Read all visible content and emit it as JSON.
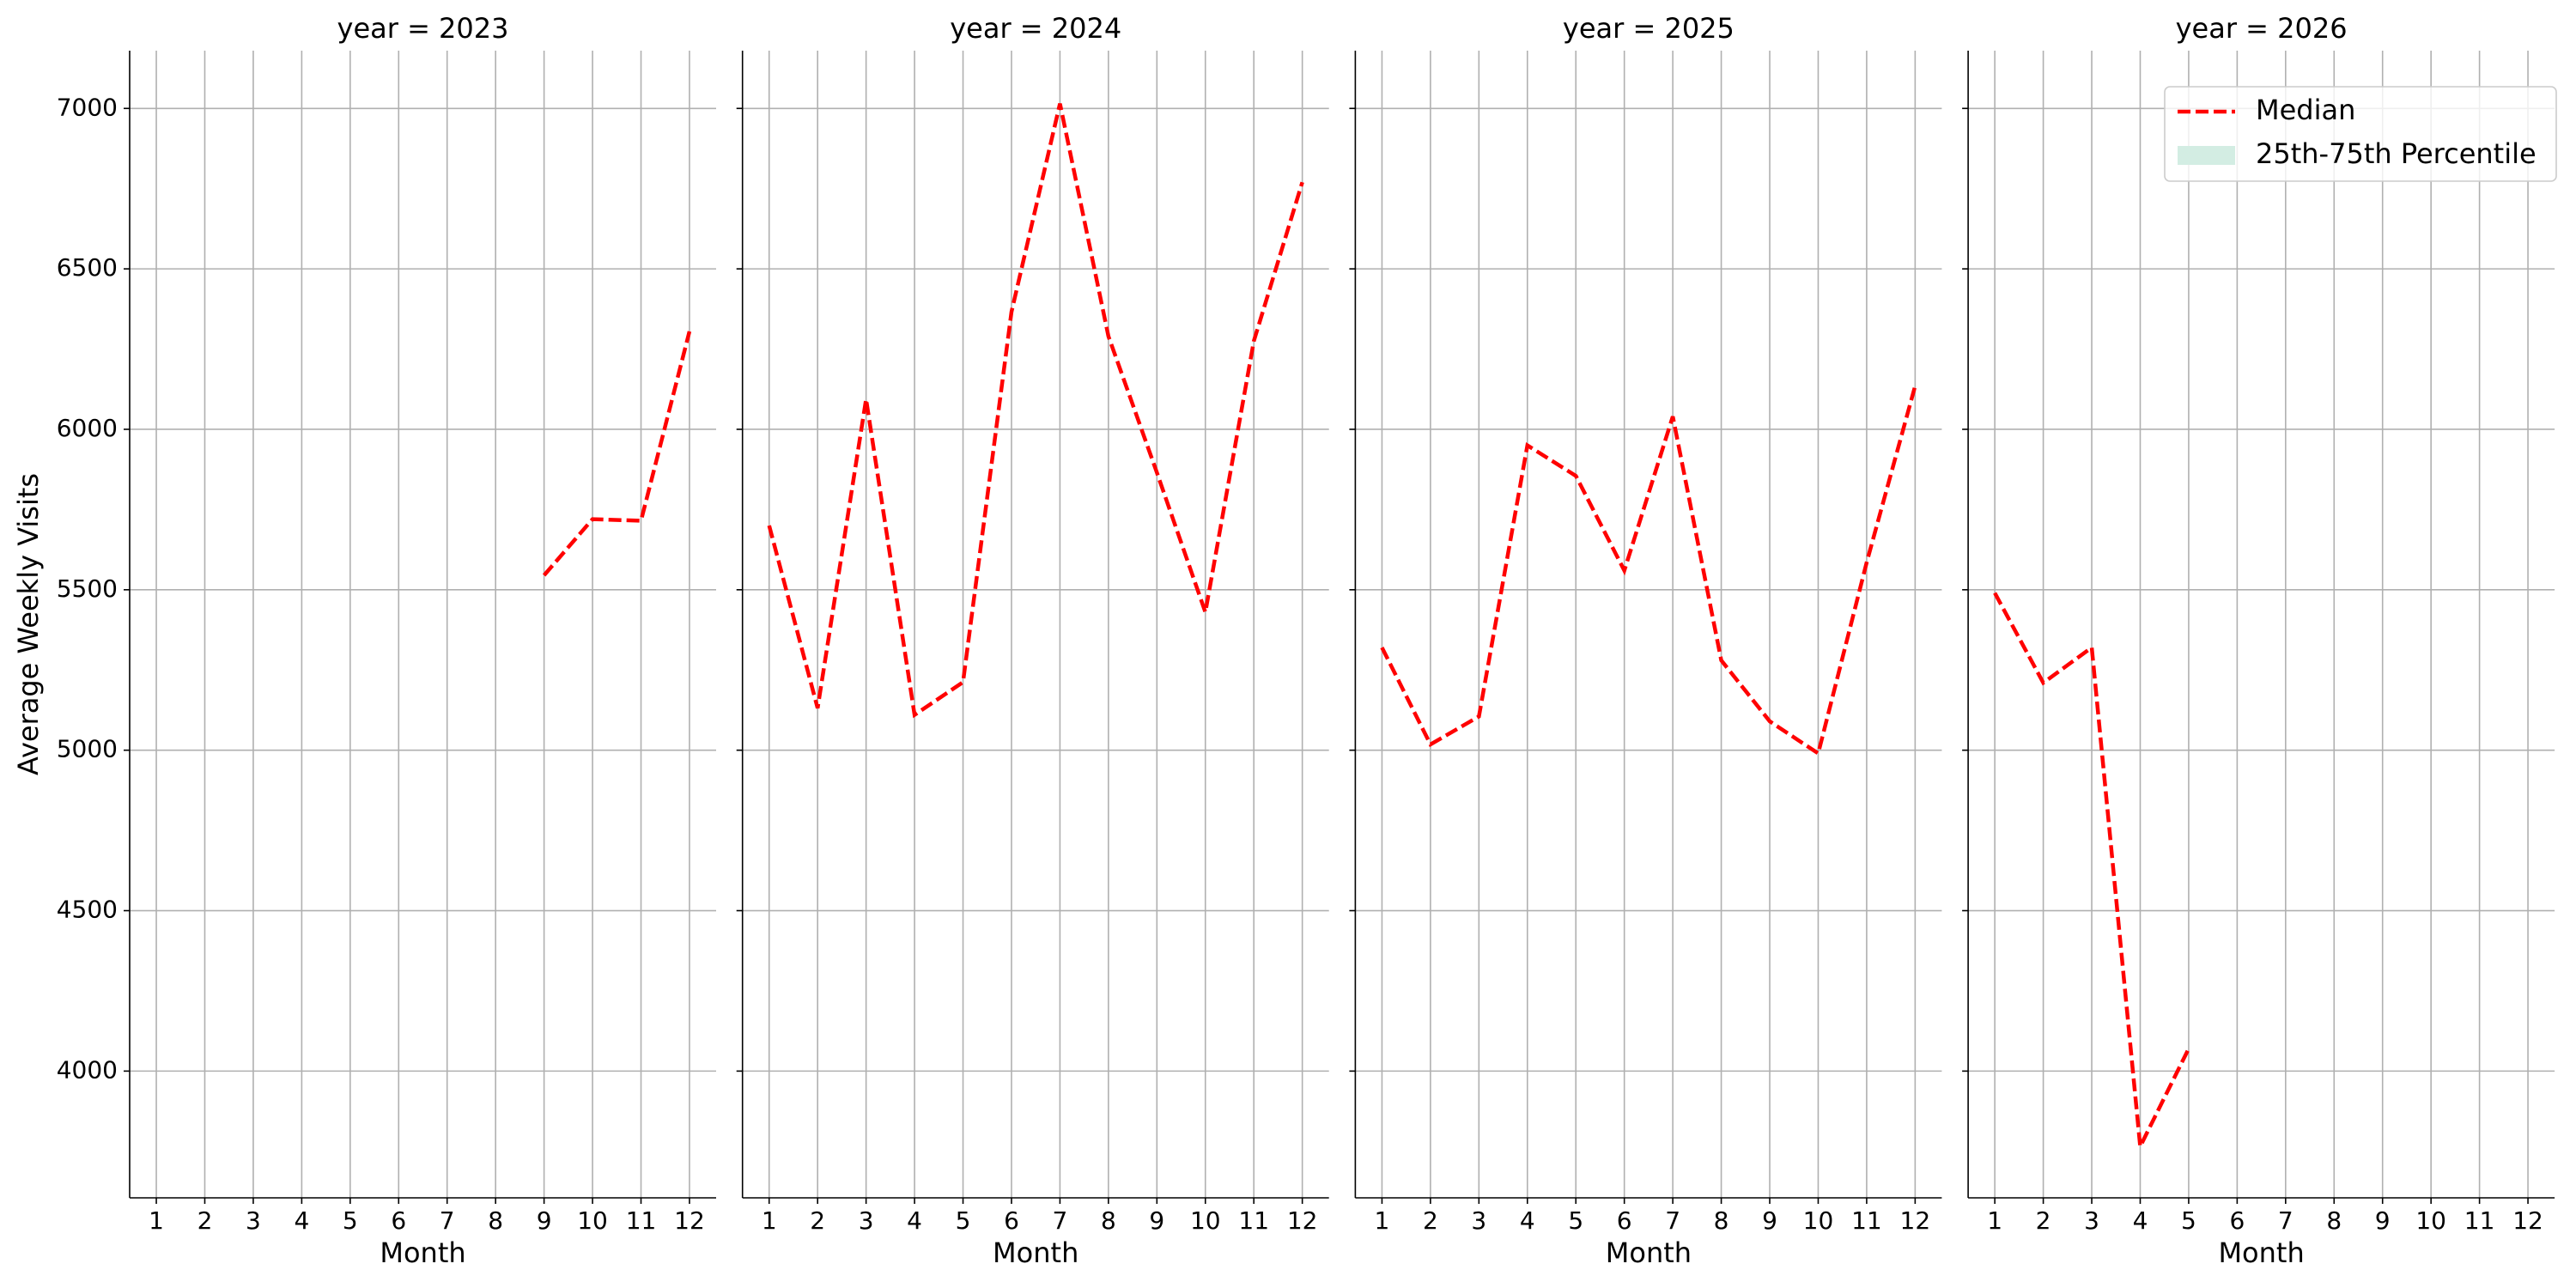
{
  "chart_data": [
    {
      "type": "line",
      "title": "year = 2023",
      "xlabel": "Month",
      "ylabel": "Average Weekly Visits",
      "x": [
        1,
        2,
        3,
        4,
        5,
        6,
        7,
        8,
        9,
        10,
        11,
        12
      ],
      "xlim": [
        0.45,
        12.55
      ],
      "xticks": [
        1,
        2,
        3,
        4,
        5,
        6,
        7,
        8,
        9,
        10,
        11,
        12
      ],
      "ylim": [
        3605,
        7180
      ],
      "yticks": [
        4000,
        4500,
        5000,
        5500,
        6000,
        6500,
        7000
      ],
      "grid": true,
      "series": [
        {
          "name": "Median",
          "color": "#ff0000",
          "dashed": true,
          "values": [
            null,
            null,
            null,
            null,
            null,
            null,
            null,
            null,
            5545,
            5720,
            5715,
            6305
          ]
        }
      ]
    },
    {
      "type": "line",
      "title": "year = 2024",
      "xlabel": "Month",
      "x": [
        1,
        2,
        3,
        4,
        5,
        6,
        7,
        8,
        9,
        10,
        11,
        12
      ],
      "xlim": [
        0.45,
        12.55
      ],
      "xticks": [
        1,
        2,
        3,
        4,
        5,
        6,
        7,
        8,
        9,
        10,
        11,
        12
      ],
      "ylim": [
        3605,
        7180
      ],
      "yticks": [
        4000,
        4500,
        5000,
        5500,
        6000,
        6500,
        7000
      ],
      "grid": true,
      "series": [
        {
          "name": "Median",
          "color": "#ff0000",
          "dashed": true,
          "values": [
            5700,
            5131,
            6094,
            5110,
            5212,
            6366,
            7015,
            6290,
            5865,
            5430,
            6275,
            6770
          ]
        }
      ]
    },
    {
      "type": "line",
      "title": "year = 2025",
      "xlabel": "Month",
      "x": [
        1,
        2,
        3,
        4,
        5,
        6,
        7,
        8,
        9,
        10,
        11,
        12
      ],
      "xlim": [
        0.45,
        12.55
      ],
      "xticks": [
        1,
        2,
        3,
        4,
        5,
        6,
        7,
        8,
        9,
        10,
        11,
        12
      ],
      "ylim": [
        3605,
        7180
      ],
      "yticks": [
        4000,
        4500,
        5000,
        5500,
        6000,
        6500,
        7000
      ],
      "grid": true,
      "series": [
        {
          "name": "Median",
          "color": "#ff0000",
          "dashed": true,
          "values": [
            5320,
            5018,
            5105,
            5950,
            5855,
            5560,
            6040,
            5280,
            5090,
            4990,
            5585,
            6135
          ]
        }
      ]
    },
    {
      "type": "line",
      "title": "year = 2026",
      "xlabel": "Month",
      "x": [
        1,
        2,
        3,
        4,
        5,
        6,
        7,
        8,
        9,
        10,
        11,
        12
      ],
      "xlim": [
        0.45,
        12.55
      ],
      "xticks": [
        1,
        2,
        3,
        4,
        5,
        6,
        7,
        8,
        9,
        10,
        11,
        12
      ],
      "ylim": [
        3605,
        7180
      ],
      "yticks": [
        4000,
        4500,
        5000,
        5500,
        6000,
        6500,
        7000
      ],
      "grid": true,
      "legend": "upper right",
      "series": [
        {
          "name": "Median",
          "color": "#ff0000",
          "dashed": true,
          "values": [
            5490,
            5210,
            5320,
            3765,
            4070,
            null,
            null,
            null,
            null,
            null,
            null,
            null
          ]
        },
        {
          "name": "25th-75th Percentile",
          "color": "#d3ede3",
          "area": true,
          "values": [
            null,
            null,
            null,
            null,
            null,
            null,
            null,
            null,
            null,
            null,
            null,
            null
          ]
        }
      ]
    }
  ]
}
